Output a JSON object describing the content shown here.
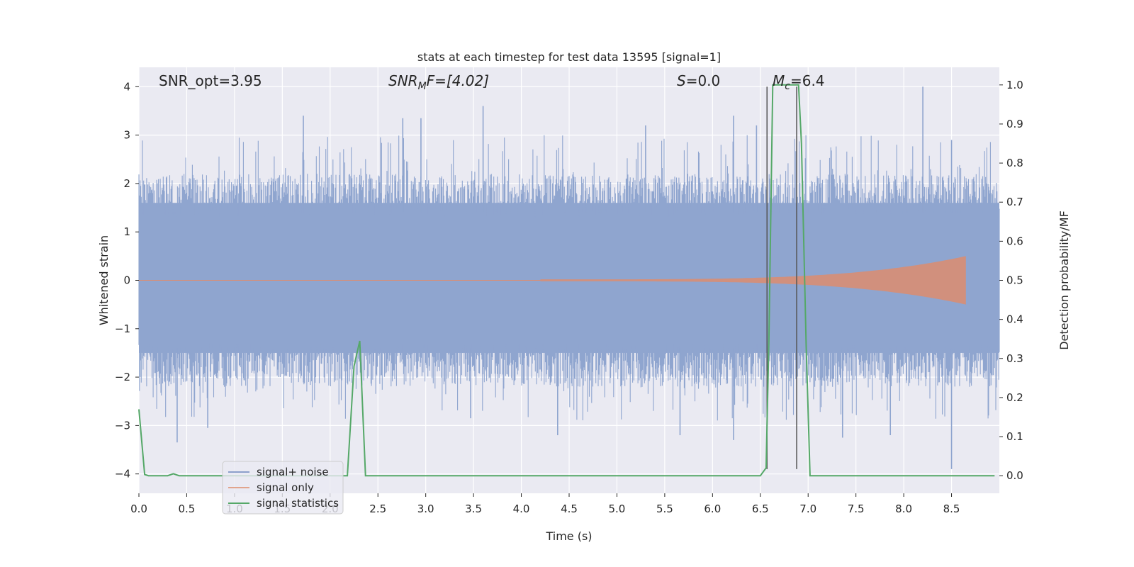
{
  "chart_data": {
    "type": "line",
    "title": "stats at each timestep for test data 13595 [signal=1]",
    "xlabel": "Time (s)",
    "ylabel_left": "Whitened strain",
    "ylabel_right": "Detection probability/MF",
    "xlim": [
      0.0,
      9.0
    ],
    "ylim_left": [
      -4.4,
      4.4
    ],
    "ylim_right": [
      -0.045,
      1.045
    ],
    "x_ticks": [
      "0.0",
      "0.5",
      "1.0",
      "1.5",
      "2.0",
      "2.5",
      "3.0",
      "3.5",
      "4.0",
      "4.5",
      "5.0",
      "5.5",
      "6.0",
      "6.5",
      "7.0",
      "7.5",
      "8.0",
      "8.5"
    ],
    "y_ticks_left": [
      "4",
      "3",
      "2",
      "1",
      "0",
      "−1",
      "−2",
      "−3",
      "−4"
    ],
    "y_ticks_right": [
      "1.0",
      "0.9",
      "0.8",
      "0.7",
      "0.6",
      "0.5",
      "0.4",
      "0.3",
      "0.2",
      "0.1",
      "0.0"
    ],
    "annotations": {
      "snr_opt": "SNR_opt=3.95",
      "snr_mf_main": "SNR",
      "snr_mf_sub": "M",
      "snr_mf_rest": "F=[4.02]",
      "s_var": "S",
      "s_val": "=0.0",
      "mc_var": "M",
      "mc_sub": "c",
      "mc_val": "=6.4"
    },
    "legend": {
      "placement": "lower-left",
      "entries": [
        {
          "label": "signal+ noise",
          "color": "#8da0cb"
        },
        {
          "label": "signal only",
          "color": "#e1a48d"
        },
        {
          "label": "signal statistics",
          "color": "#55a868"
        }
      ]
    },
    "series": [
      {
        "name": "signal+ noise",
        "kind": "noise",
        "color": "#8fa5cf",
        "seed": 13595,
        "x_range": [
          0.0,
          9.0
        ],
        "core_range": [
          -1.5,
          1.6
        ],
        "typical_range": [
          -2.3,
          2.4
        ],
        "spikes": [
          {
            "x": 0.4,
            "y": -3.35
          },
          {
            "x": 0.72,
            "y": -3.05
          },
          {
            "x": 1.72,
            "y": 3.4
          },
          {
            "x": 2.76,
            "y": 3.35
          },
          {
            "x": 2.95,
            "y": 3.35
          },
          {
            "x": 3.6,
            "y": 3.6
          },
          {
            "x": 3.47,
            "y": -2.85
          },
          {
            "x": 4.38,
            "y": -3.2
          },
          {
            "x": 5.66,
            "y": -3.2
          },
          {
            "x": 5.3,
            "y": 3.2
          },
          {
            "x": 6.22,
            "y": -3.3
          },
          {
            "x": 6.22,
            "y": 3.4
          },
          {
            "x": 6.46,
            "y": 3.2
          },
          {
            "x": 7.36,
            "y": -3.25
          },
          {
            "x": 7.86,
            "y": -3.2
          },
          {
            "x": 8.2,
            "y": 4.0
          },
          {
            "x": 8.5,
            "y": -3.9
          },
          {
            "x": 8.5,
            "y": 2.9
          }
        ]
      },
      {
        "name": "signal only",
        "kind": "chirp",
        "color": "#dd8c6f",
        "x_start": 4.2,
        "x_end": 8.65,
        "amp_start": 0.02,
        "amp_end": 0.5
      },
      {
        "name": "signal statistics",
        "kind": "line",
        "axis": "right",
        "color": "#55a868",
        "x": [
          0.0,
          0.06,
          0.1,
          0.15,
          0.2,
          0.25,
          0.3,
          0.36,
          0.42,
          0.5,
          1.0,
          1.5,
          2.0,
          2.18,
          2.25,
          2.31,
          2.37,
          2.5,
          3.0,
          4.0,
          5.0,
          6.0,
          6.5,
          6.56,
          6.59,
          6.63,
          6.7,
          6.8,
          6.9,
          6.93,
          6.98,
          7.02,
          7.1,
          7.5,
          8.0,
          8.5,
          8.95
        ],
        "y": [
          0.17,
          0.003,
          0.0,
          0.0,
          0.0,
          0.0,
          0.0,
          0.005,
          0.0,
          0.0,
          0.0,
          0.0,
          0.0,
          0.0,
          0.28,
          0.345,
          0.0,
          0.0,
          0.0,
          0.0,
          0.0,
          0.0,
          0.0,
          0.02,
          0.35,
          1.0,
          1.0,
          1.0,
          1.0,
          0.85,
          0.33,
          0.0,
          0.0,
          0.0,
          0.0,
          0.0,
          0.0
        ]
      }
    ],
    "vertical_lines": [
      {
        "x": 6.57,
        "y_top": 4.0,
        "y_bottom": -3.9,
        "color": "#555555"
      },
      {
        "x": 6.88,
        "y_top": 4.0,
        "y_bottom": -3.9,
        "color": "#555555"
      }
    ]
  }
}
